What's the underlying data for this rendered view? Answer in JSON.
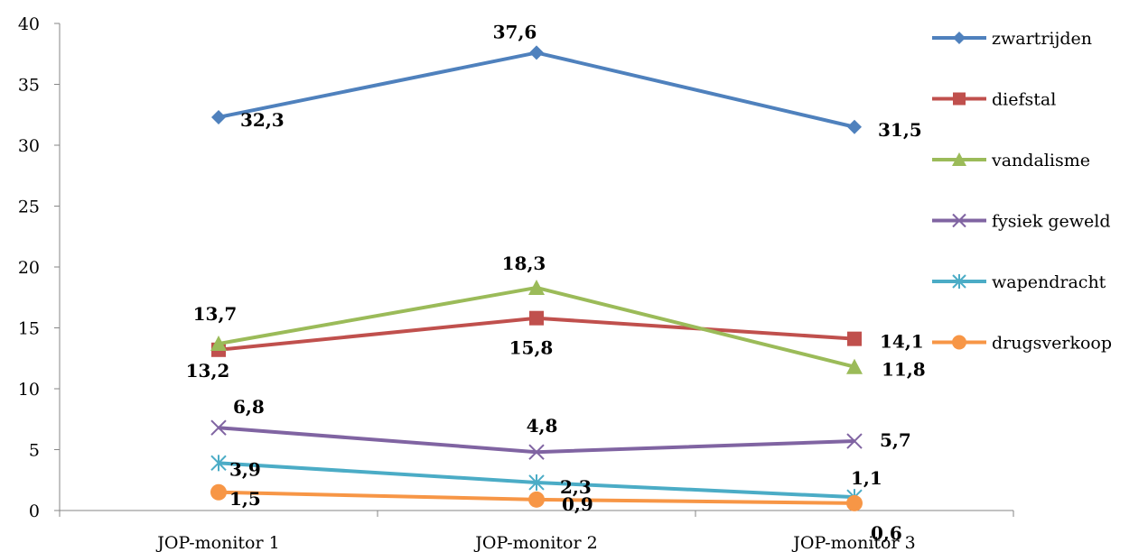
{
  "chart_data": {
    "type": "line",
    "categories": [
      "JOP-monitor 1",
      "JOP-monitor 2",
      "JOP-monitor 3"
    ],
    "y_ticks": [
      "0",
      "5",
      "10",
      "15",
      "20",
      "25",
      "30",
      "35",
      "40"
    ],
    "ylim": [
      0,
      40
    ],
    "grid": false,
    "legend_position": "right",
    "series": [
      {
        "name": "zwartrijden",
        "values": [
          32.3,
          37.6,
          31.5
        ],
        "labels": [
          "32,3",
          "37,6",
          "31,5"
        ],
        "color": "#4F81BD",
        "marker": "diamond-icon"
      },
      {
        "name": "diefstal",
        "values": [
          13.2,
          15.8,
          14.1
        ],
        "labels": [
          "13,2",
          "15,8",
          "14,1"
        ],
        "color": "#C0504D",
        "marker": "square-icon"
      },
      {
        "name": "vandalisme",
        "values": [
          13.7,
          18.3,
          11.8
        ],
        "labels": [
          "13,7",
          "18,3",
          "11,8"
        ],
        "color": "#9BBB59",
        "marker": "triangle-icon"
      },
      {
        "name": "fysiek geweld",
        "values": [
          6.8,
          4.8,
          5.7
        ],
        "labels": [
          "6,8",
          "4,8",
          "5,7"
        ],
        "color": "#8064A2",
        "marker": "x-icon"
      },
      {
        "name": "wapendracht",
        "values": [
          3.9,
          2.3,
          1.1
        ],
        "labels": [
          "3,9",
          "2,3",
          "1,1"
        ],
        "color": "#4BACC6",
        "marker": "asterisk-icon"
      },
      {
        "name": "drugsverkoop",
        "values": [
          1.5,
          0.9,
          0.6
        ],
        "labels": [
          "1,5",
          "0,9",
          "0,6"
        ],
        "color": "#F79646",
        "marker": "circle-icon"
      }
    ]
  }
}
